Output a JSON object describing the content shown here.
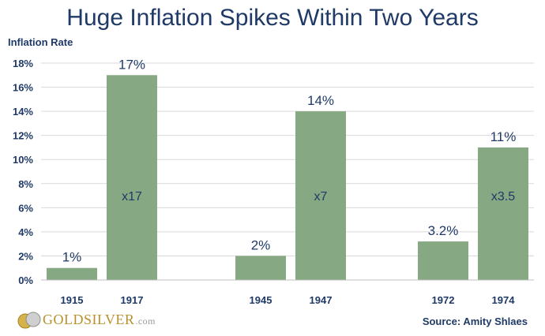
{
  "chart_data": {
    "type": "bar",
    "title": "Huge Inflation Spikes Within Two Years",
    "ylabel": "Inflation Rate",
    "ylim": [
      0,
      18
    ],
    "yticks": [
      "0%",
      "2%",
      "4%",
      "6%",
      "8%",
      "10%",
      "12%",
      "14%",
      "16%",
      "18%"
    ],
    "grid": true,
    "bar_color": "#86a882",
    "groups": [
      {
        "categories": [
          "1915",
          "1917"
        ],
        "values": [
          1,
          17
        ],
        "value_labels": [
          "1%",
          "17%"
        ],
        "multiplier": "x17"
      },
      {
        "categories": [
          "1945",
          "1947"
        ],
        "values": [
          2,
          14
        ],
        "value_labels": [
          "2%",
          "14%"
        ],
        "multiplier": "x7"
      },
      {
        "categories": [
          "1972",
          "1974"
        ],
        "values": [
          3.2,
          11
        ],
        "value_labels": [
          "3.2%",
          "11%"
        ],
        "multiplier": "x3.5"
      }
    ]
  },
  "footer": {
    "logo_gold": "GOLD",
    "logo_silver": "SILVER",
    "logo_suffix": ".com",
    "source": "Source: Amity Shlaes"
  }
}
